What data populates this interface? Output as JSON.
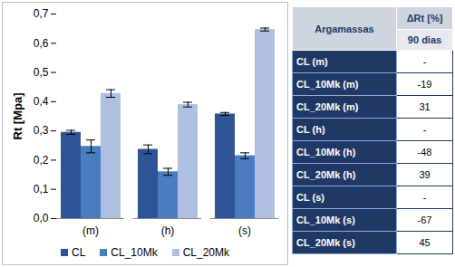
{
  "chart_data": {
    "type": "bar",
    "y_label": "Rt [Mpa]",
    "categories": [
      "(m)",
      "(h)",
      "(s)"
    ],
    "series": [
      {
        "name": "CL",
        "color": "#2f5496",
        "values": [
          0.295,
          0.237,
          0.358
        ],
        "errors": [
          0.007,
          0.015,
          0.005
        ]
      },
      {
        "name": "CL_10Mk",
        "color": "#4a7cc0",
        "values": [
          0.247,
          0.16,
          0.215
        ],
        "errors": [
          0.022,
          0.012,
          0.01
        ]
      },
      {
        "name": "CL_20Mk",
        "color": "#aebfdf",
        "values": [
          0.428,
          0.39,
          0.647
        ],
        "errors": [
          0.013,
          0.008,
          0.005
        ]
      }
    ],
    "ylim": [
      0,
      0.7
    ],
    "yticks": [
      {
        "value": 0,
        "label": "0,0"
      },
      {
        "value": 0.1,
        "label": "0,1"
      },
      {
        "value": 0.2,
        "label": "0,2"
      },
      {
        "value": 0.3,
        "label": "0,3"
      },
      {
        "value": 0.4,
        "label": "0,4"
      },
      {
        "value": 0.5,
        "label": "0,5"
      },
      {
        "value": 0.6,
        "label": "0,6"
      },
      {
        "value": 0.7,
        "label": "0,7"
      }
    ],
    "grid": false,
    "legend": "bottom"
  },
  "table": {
    "header": {
      "first": "Argamassas",
      "second": "ΔRt [%]",
      "period": "90 dias"
    },
    "rows": [
      [
        "CL (m)",
        "-"
      ],
      [
        "CL_10Mk (m)",
        -19
      ],
      [
        "CL_20Mk (m)",
        31
      ],
      [
        "CL (h)",
        "-"
      ],
      [
        "CL_10Mk (h)",
        -48
      ],
      [
        "CL_20Mk (h)",
        39
      ],
      [
        "CL (s)",
        "-"
      ],
      [
        "CL_10Mk (s)",
        -67
      ],
      [
        "CL_20Mk (s)",
        45
      ]
    ]
  }
}
